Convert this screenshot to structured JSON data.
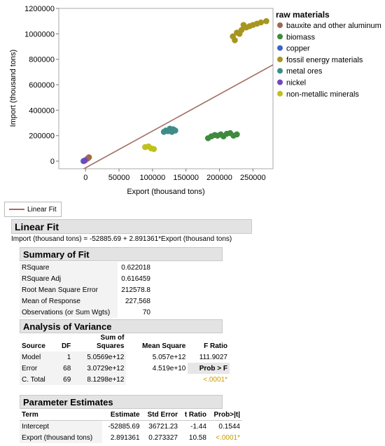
{
  "chart_data": {
    "type": "scatter",
    "xlabel": "Export (thousand tons)",
    "ylabel": "Import (thousand tons)",
    "xlim": [
      -40000,
      280000
    ],
    "ylim": [
      -60000,
      1200000
    ],
    "xticks": [
      0,
      50000,
      100000,
      150000,
      200000,
      250000
    ],
    "yticks": [
      0,
      200000,
      400000,
      600000,
      800000,
      1000000,
      1200000
    ],
    "grid": false,
    "legend": {
      "title": "raw materials",
      "placement": "right",
      "entries": [
        {
          "label": "bauxite and other aluminum",
          "color": "#a0684f"
        },
        {
          "label": "biomass",
          "color": "#3e8b3e"
        },
        {
          "label": "copper",
          "color": "#3f63c8"
        },
        {
          "label": "fossil energy materials",
          "color": "#a89520"
        },
        {
          "label": "metal ores",
          "color": "#3f8c88"
        },
        {
          "label": "nickel",
          "color": "#7346be"
        },
        {
          "label": "non-metallic minerals",
          "color": "#bfc21e"
        }
      ]
    },
    "series": [
      {
        "name": "bauxite and other aluminum",
        "color": "#a0684f",
        "points": [
          [
            3000,
            20000
          ],
          [
            5000,
            30000
          ]
        ]
      },
      {
        "name": "biomass",
        "color": "#3e8b3e",
        "points": [
          [
            183000,
            180000
          ],
          [
            188000,
            195000
          ],
          [
            193000,
            205000
          ],
          [
            197000,
            200000
          ],
          [
            202000,
            210000
          ],
          [
            206000,
            195000
          ],
          [
            211000,
            215000
          ],
          [
            216000,
            220000
          ],
          [
            221000,
            200000
          ],
          [
            226000,
            210000
          ]
        ]
      },
      {
        "name": "copper",
        "color": "#3f63c8",
        "points": [
          [
            -3000,
            0
          ]
        ]
      },
      {
        "name": "fossil energy materials",
        "color": "#a89520",
        "points": [
          [
            220000,
            980000
          ],
          [
            223000,
            950000
          ],
          [
            226000,
            1010000
          ],
          [
            230000,
            1000000
          ],
          [
            233000,
            1030000
          ],
          [
            236000,
            1070000
          ],
          [
            240000,
            1050000
          ],
          [
            245000,
            1060000
          ],
          [
            250000,
            1070000
          ],
          [
            256000,
            1080000
          ],
          [
            262000,
            1090000
          ],
          [
            270000,
            1100000
          ]
        ]
      },
      {
        "name": "metal ores",
        "color": "#3f8c88",
        "points": [
          [
            117000,
            230000
          ],
          [
            120000,
            240000
          ],
          [
            123000,
            235000
          ],
          [
            126000,
            255000
          ],
          [
            129000,
            230000
          ],
          [
            131000,
            250000
          ],
          [
            134000,
            240000
          ]
        ]
      },
      {
        "name": "nickel",
        "color": "#7346be",
        "points": [
          [
            -1000,
            5000
          ]
        ]
      },
      {
        "name": "non-metallic minerals",
        "color": "#bfc21e",
        "points": [
          [
            89000,
            110000
          ],
          [
            94000,
            115000
          ],
          [
            98000,
            100000
          ],
          [
            102000,
            95000
          ]
        ]
      }
    ],
    "fit_line": {
      "intercept": -52885.69,
      "slope": 2.891361,
      "color": "#a36d62"
    }
  },
  "fit_legend": {
    "label": "Linear Fit"
  },
  "linear_fit": {
    "title": "Linear Fit",
    "equation": "Import (thousand tons) = -52885.69 + 2.891361*Export (thousand tons)"
  },
  "summary": {
    "title": "Summary of Fit",
    "rows": [
      {
        "label": "RSquare",
        "value": "0.622018"
      },
      {
        "label": "RSquare Adj",
        "value": "0.616459"
      },
      {
        "label": "Root Mean Square Error",
        "value": "212578.8"
      },
      {
        "label": "Mean of Response",
        "value": "227,568"
      },
      {
        "label": "Observations (or Sum Wgts)",
        "value": "70"
      }
    ]
  },
  "anova": {
    "title": "Analysis of Variance",
    "headers": {
      "source": "Source",
      "df": "DF",
      "ss_top": "Sum of",
      "ss": "Squares",
      "ms": "Mean Square",
      "f": "F Ratio"
    },
    "model": {
      "source": "Model",
      "df": "1",
      "ss": "5.0569e+12",
      "ms": "5.057e+12",
      "f": "111.9027"
    },
    "error": {
      "source": "Error",
      "df": "68",
      "ss": "3.0729e+12",
      "ms": "4.519e+10",
      "prob_label": "Prob > F"
    },
    "total": {
      "source": "C. Total",
      "df": "69",
      "ss": "8.1298e+12",
      "prob": "<.0001*"
    }
  },
  "params": {
    "title": "Parameter Estimates",
    "headers": {
      "term": "Term",
      "estimate": "Estimate",
      "stderr": "Std Error",
      "t": "t Ratio",
      "p": "Prob>|t|"
    },
    "rows": [
      {
        "term": "Intercept",
        "estimate": "-52885.69",
        "stderr": "36721.23",
        "t": "-1.44",
        "p": "0.1544"
      },
      {
        "term": "Export (thousand tons)",
        "estimate": "2.891361",
        "stderr": "0.273327",
        "t": "10.58",
        "p": "<.0001*"
      }
    ]
  }
}
